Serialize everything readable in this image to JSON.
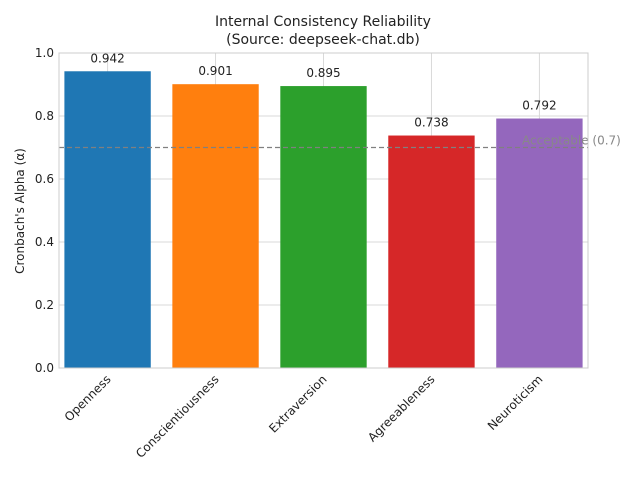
{
  "chart_data": {
    "type": "bar",
    "title": "Internal Consistency Reliability",
    "subtitle": "(Source: deepseek-chat.db)",
    "xlabel": "",
    "ylabel": "Cronbach's Alpha (α)",
    "categories": [
      "Openness",
      "Conscientiousness",
      "Extraversion",
      "Agreeableness",
      "Neuroticism"
    ],
    "values": [
      0.942,
      0.901,
      0.895,
      0.738,
      0.792
    ],
    "value_labels": [
      "0.942",
      "0.901",
      "0.895",
      "0.738",
      "0.792"
    ],
    "colors": [
      "#1f77b4",
      "#ff7f0e",
      "#2ca02c",
      "#d62728",
      "#9467bd"
    ],
    "ylim": [
      0,
      1.0
    ],
    "yticks": [
      0.0,
      0.2,
      0.4,
      0.6,
      0.8,
      1.0
    ],
    "ytick_labels": [
      "0.0",
      "0.2",
      "0.4",
      "0.6",
      "0.8",
      "1.0"
    ],
    "grid": true,
    "reference_line": {
      "value": 0.7,
      "label": "Acceptable (0.7)",
      "color": "#808080",
      "style": "dashed"
    }
  }
}
